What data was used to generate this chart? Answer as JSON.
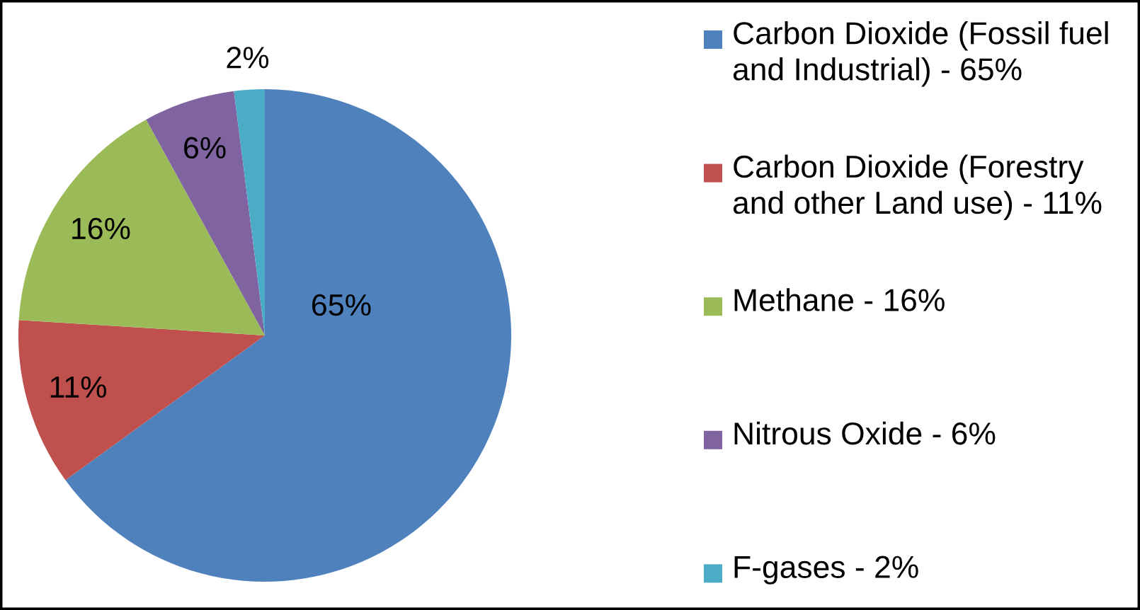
{
  "chart_data": {
    "type": "pie",
    "categories": [
      "Carbon Dioxide (Fossil fuel and Industrial) - 65%",
      "Carbon Dioxide (Forestry and other Land use) - 11%",
      "Methane - 16%",
      "Nitrous Oxide - 6%",
      "F-gases - 2%"
    ],
    "values": [
      65,
      11,
      16,
      6,
      2
    ],
    "colors": [
      "#4f81bd",
      "#c0504d",
      "#9bbb59",
      "#8064a2",
      "#4bacc6"
    ],
    "value_labels": [
      "65%",
      "11%",
      "16%",
      "6%",
      "2%"
    ],
    "legend": "right"
  }
}
